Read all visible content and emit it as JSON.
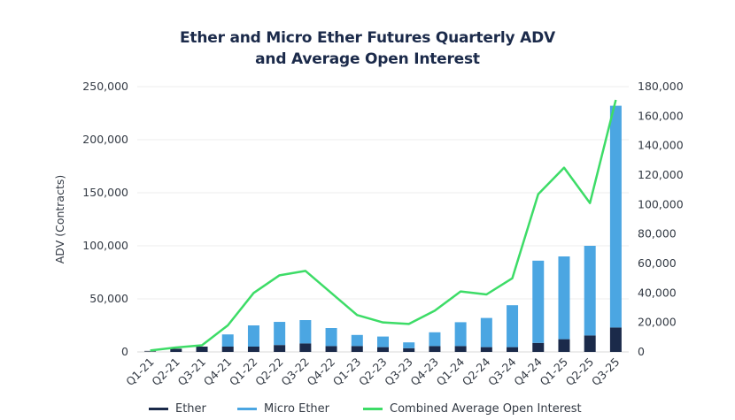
{
  "title_line1": "Ether and Micro Ether Futures Quarterly ADV",
  "title_line2": "and Average Open Interest",
  "colors": {
    "ether": "#1b2a4a",
    "micro_ether": "#4ba6e2",
    "open_interest": "#3ddc67",
    "grid": "#ececec"
  },
  "legend": [
    {
      "label": "Ether",
      "key": "ether"
    },
    {
      "label": "Micro Ether",
      "key": "micro_ether"
    },
    {
      "label": "Combined Average Open Interest",
      "key": "open_interest"
    }
  ],
  "chart_data": {
    "type": "bar",
    "stacked": true,
    "title": "Ether and Micro Ether Futures Quarterly ADV and Average Open Interest",
    "xlabel": "",
    "ylabel": "ADV (Contracts)",
    "ylim": [
      0,
      250000
    ],
    "y2lim": [
      0,
      180000
    ],
    "yticks": [
      "0",
      "50,000",
      "100,000",
      "150,000",
      "200,000",
      "250,000"
    ],
    "y2ticks": [
      "0",
      "20,000",
      "40,000",
      "60,000",
      "80,000",
      "100,000",
      "120,000",
      "140,000",
      "160,000",
      "180,000"
    ],
    "grid": true,
    "legend_position": "bottom",
    "categories": [
      "Q1-21",
      "Q2-21",
      "Q3-21",
      "Q4-21",
      "Q1-22",
      "Q2-22",
      "Q3-22",
      "Q4-22",
      "Q1-23",
      "Q2-23",
      "Q3-23",
      "Q4-23",
      "Q1-24",
      "Q2-24",
      "Q3-24",
      "Q4-24",
      "Q1-25",
      "Q2-25",
      "Q3-25"
    ],
    "series": [
      {
        "name": "Ether",
        "type": "bar",
        "axis": "left",
        "values": [
          1000,
          3000,
          5000,
          5000,
          5000,
          6500,
          8000,
          5500,
          5500,
          4500,
          3500,
          5500,
          5500,
          4500,
          4500,
          8500,
          12000,
          15500,
          23000
        ]
      },
      {
        "name": "Micro Ether",
        "type": "bar",
        "axis": "left",
        "values": [
          0,
          0,
          0,
          11500,
          20000,
          21800,
          22000,
          17000,
          10500,
          10000,
          5500,
          13000,
          22500,
          27500,
          39500,
          77500,
          78000,
          84500,
          209000
        ]
      },
      {
        "name": "Combined Average Open Interest",
        "type": "line",
        "axis": "right",
        "values": [
          1000,
          3000,
          4500,
          18000,
          40000,
          52000,
          55000,
          40000,
          25000,
          20000,
          19000,
          28000,
          41000,
          39000,
          50000,
          107000,
          125000,
          101000,
          171000
        ]
      }
    ]
  }
}
